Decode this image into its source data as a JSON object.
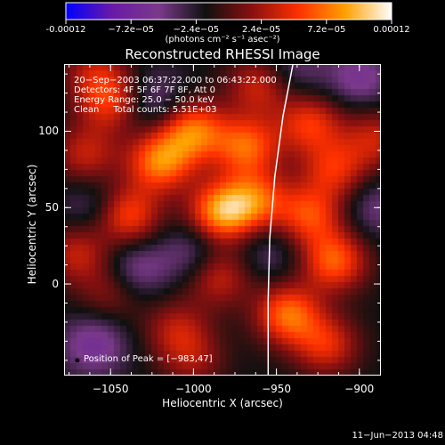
{
  "colorbar": {
    "tick_labels": [
      "-0.00012",
      "−7.2e−05",
      "−2.4e−05",
      "2.4e−05",
      "7.2e−05",
      "0.00012"
    ],
    "units": "(photons cm⁻² s⁻¹ asec⁻²)",
    "colors": [
      "#0000ff",
      "#6a1aa6",
      "#7a3a8a",
      "#101010",
      "#8a1010",
      "#ff3000",
      "#ffa000",
      "#ffffff"
    ]
  },
  "chart_data": {
    "type": "heatmap",
    "title": "Reconstructed RHESSI Image",
    "xlabel": "Heliocentric X (arcsec)",
    "ylabel": "Heliocentric Y (arcsec)",
    "xlim": [
      -1078,
      -887
    ],
    "ylim": [
      -60,
      144
    ],
    "x_ticks": [
      -1050,
      -1000,
      -950,
      -900
    ],
    "y_ticks": [
      0,
      50,
      100
    ],
    "zlim": [
      -0.00012,
      0.00012
    ],
    "annotations": [
      "20−Sep−2003 06:37:22.000 to 06:43:22.000",
      "Detectors: 4F 5F 6F 7F 8F, Att 0",
      "Energy Range: 25.0 − 50.0 keV",
      "Clean     Total counts: 5.51E+03"
    ],
    "peak_label": "Position of Peak = [−983,47]",
    "peak": [
      -983,
      47
    ],
    "limb_curve": [
      [
        -940,
        144
      ],
      [
        -946,
        110
      ],
      [
        -951,
        70
      ],
      [
        -954,
        30
      ],
      [
        -955,
        -10
      ],
      [
        -955,
        -60
      ]
    ],
    "sources": [
      [
        -983,
        47,
        1.0
      ],
      [
        -1020,
        80,
        0.9
      ],
      [
        -1040,
        45,
        0.75
      ],
      [
        -1000,
        100,
        0.85
      ],
      [
        -968,
        90,
        0.8
      ],
      [
        -962,
        55,
        0.7
      ],
      [
        -930,
        105,
        0.65
      ],
      [
        -915,
        75,
        0.6
      ],
      [
        -930,
        45,
        0.7
      ],
      [
        -915,
        15,
        0.8
      ],
      [
        -943,
        -20,
        0.85
      ],
      [
        -920,
        -40,
        0.6
      ],
      [
        -985,
        5,
        0.55
      ],
      [
        -1050,
        120,
        0.65
      ],
      [
        -1070,
        20,
        0.5
      ],
      [
        -1010,
        -30,
        0.45
      ],
      [
        -1050,
        -5,
        0.35
      ],
      [
        -1065,
        85,
        0.5
      ],
      [
        -890,
        95,
        0.5
      ],
      [
        -960,
        130,
        0.55
      ],
      [
        -1060,
        140,
        0.4
      ],
      [
        -1000,
        -50,
        0.35
      ],
      [
        -1060,
        -40,
        -0.45
      ],
      [
        -1025,
        120,
        -0.35
      ],
      [
        -1060,
        50,
        -0.3
      ],
      [
        -940,
        140,
        -0.3
      ],
      [
        -900,
        135,
        -0.4
      ],
      [
        -1000,
        20,
        -0.35
      ],
      [
        -1035,
        10,
        -0.4
      ],
      [
        -890,
        50,
        -0.3
      ],
      [
        -955,
        20,
        -0.25
      ]
    ]
  },
  "footer": "11−Jun−2013 04:48"
}
